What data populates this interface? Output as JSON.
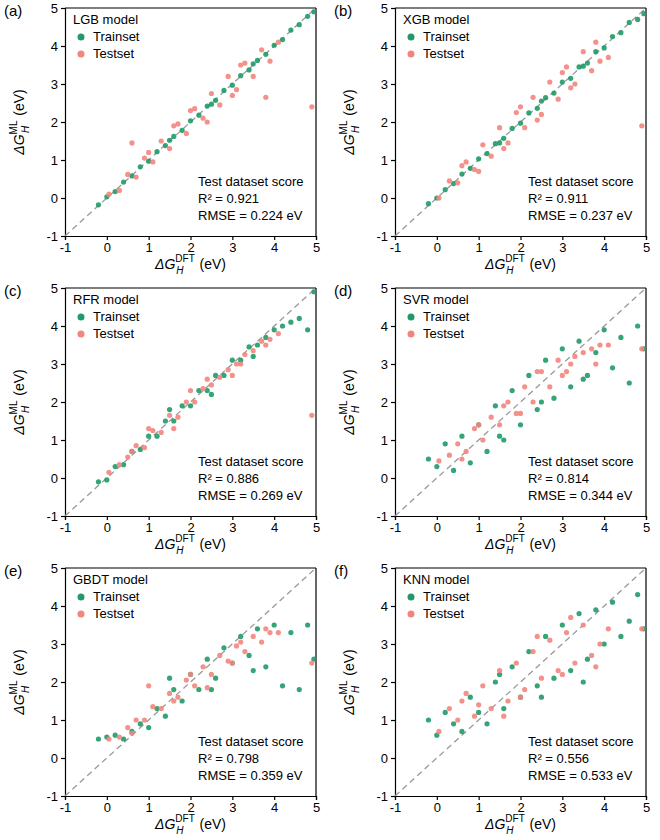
{
  "chart_data": [
    {
      "type": "scatter",
      "label": "(a)",
      "title": "LGB model",
      "xlabel": {
        "text": "ΔG",
        "sub": "H",
        "sup": "DFT",
        "unit": "(eV)"
      },
      "ylabel": {
        "text": "ΔG",
        "sub": "H",
        "sup": "ML",
        "unit": "(eV)"
      },
      "xlim": [
        -1,
        5
      ],
      "ylim": [
        -1,
        5
      ],
      "xticks": [
        -1,
        0,
        1,
        2,
        3,
        4,
        5
      ],
      "yticks": [
        -1,
        0,
        1,
        2,
        3,
        4,
        5
      ],
      "legend": "upper left",
      "annotations": [
        "Test dataset score",
        "R² = 0.921",
        "RMSE = 0.224 eV"
      ],
      "series": [
        {
          "name": "Trainset",
          "color": "#1f9a68",
          "marker": "circle",
          "x": [
            -0.2,
            0.0,
            0.2,
            0.4,
            0.6,
            0.8,
            1.0,
            1.2,
            1.4,
            1.6,
            1.8,
            2.0,
            2.2,
            2.4,
            2.6,
            2.8,
            3.0,
            3.2,
            3.4,
            3.6,
            3.8,
            4.0,
            4.2,
            4.4,
            4.6,
            4.8,
            4.95,
            1.5,
            2.5,
            3.5
          ],
          "values": [
            -0.18,
            0.03,
            0.17,
            0.42,
            0.58,
            0.82,
            0.97,
            1.22,
            1.38,
            1.62,
            1.78,
            2.03,
            2.18,
            2.42,
            2.57,
            2.83,
            2.97,
            3.22,
            3.37,
            3.62,
            3.78,
            4.02,
            4.17,
            4.42,
            4.56,
            4.78,
            4.9,
            1.52,
            2.47,
            3.53
          ]
        },
        {
          "name": "Testset",
          "color": "#f2857d",
          "marker": "circle",
          "x": [
            0.05,
            0.3,
            0.5,
            0.7,
            0.9,
            1.1,
            1.3,
            1.5,
            1.7,
            1.9,
            2.1,
            2.3,
            2.5,
            2.7,
            2.9,
            3.1,
            3.3,
            3.5,
            3.7,
            3.9,
            4.1,
            1.0,
            2.0,
            3.0,
            2.4,
            1.6,
            3.2,
            0.6,
            4.9,
            3.8
          ],
          "values": [
            0.1,
            0.2,
            0.62,
            0.55,
            1.05,
            0.95,
            1.5,
            1.3,
            1.95,
            1.7,
            2.35,
            2.1,
            2.75,
            2.45,
            3.2,
            2.85,
            3.55,
            3.2,
            3.9,
            3.6,
            4.1,
            1.2,
            2.3,
            2.7,
            2.0,
            1.9,
            3.5,
            1.45,
            2.4,
            2.65
          ]
        }
      ]
    },
    {
      "type": "scatter",
      "label": "(b)",
      "title": "XGB model",
      "xlabel": {
        "text": "ΔG",
        "sub": "H",
        "sup": "DFT",
        "unit": "(eV)"
      },
      "ylabel": {
        "text": "ΔG",
        "sub": "H",
        "sup": "ML",
        "unit": "(eV)"
      },
      "xlim": [
        -1,
        5
      ],
      "ylim": [
        -1,
        5
      ],
      "xticks": [
        -1,
        0,
        1,
        2,
        3,
        4,
        5
      ],
      "yticks": [
        -1,
        0,
        1,
        2,
        3,
        4,
        5
      ],
      "legend": "upper left",
      "annotations": [
        "Test dataset score",
        "R² = 0.911",
        "RMSE = 0.237 eV"
      ],
      "series": [
        {
          "name": "Trainset",
          "color": "#1f9a68",
          "marker": "circle",
          "x": [
            -0.2,
            0.0,
            0.2,
            0.4,
            0.6,
            0.8,
            1.0,
            1.2,
            1.4,
            1.6,
            1.8,
            2.0,
            2.2,
            2.4,
            2.6,
            2.8,
            3.0,
            3.2,
            3.4,
            3.6,
            3.8,
            4.0,
            4.2,
            4.4,
            4.6,
            4.8,
            4.95,
            1.5,
            2.5,
            3.5
          ],
          "values": [
            -0.15,
            0.0,
            0.22,
            0.38,
            0.63,
            0.78,
            1.03,
            1.17,
            1.43,
            1.57,
            1.83,
            1.97,
            2.24,
            2.36,
            2.64,
            2.76,
            3.05,
            3.15,
            3.45,
            3.55,
            3.85,
            3.95,
            4.25,
            4.35,
            4.62,
            4.7,
            4.85,
            1.45,
            2.55,
            3.47
          ]
        },
        {
          "name": "Testset",
          "color": "#f2857d",
          "marker": "circle",
          "x": [
            0.05,
            0.3,
            0.5,
            0.7,
            0.9,
            1.1,
            1.3,
            1.5,
            1.7,
            1.9,
            2.1,
            2.3,
            2.5,
            2.7,
            2.9,
            3.1,
            3.3,
            3.5,
            3.7,
            3.9,
            4.1,
            1.0,
            2.0,
            3.0,
            2.4,
            1.6,
            3.2,
            0.6,
            4.9,
            3.8
          ],
          "values": [
            0.0,
            0.45,
            0.4,
            0.95,
            0.75,
            1.4,
            1.1,
            1.85,
            1.45,
            2.25,
            1.85,
            2.65,
            2.2,
            3.05,
            2.6,
            3.45,
            3.0,
            3.85,
            3.35,
            3.6,
            3.7,
            0.7,
            2.4,
            3.3,
            2.05,
            1.3,
            2.9,
            0.85,
            1.9,
            4.1
          ]
        }
      ]
    },
    {
      "type": "scatter",
      "label": "(c)",
      "title": "RFR model",
      "xlabel": {
        "text": "ΔG",
        "sub": "H",
        "sup": "DFT",
        "unit": "(eV)"
      },
      "ylabel": {
        "text": "ΔG",
        "sub": "H",
        "sup": "ML",
        "unit": "(eV)"
      },
      "xlim": [
        -1,
        5
      ],
      "ylim": [
        -1,
        5
      ],
      "xticks": [
        -1,
        0,
        1,
        2,
        3,
        4,
        5
      ],
      "yticks": [
        -1,
        0,
        1,
        2,
        3,
        4,
        5
      ],
      "legend": "upper left",
      "annotations": [
        "Test dataset score",
        "R² = 0.886",
        "RMSE = 0.269 eV"
      ],
      "series": [
        {
          "name": "Trainset",
          "color": "#1f9a68",
          "marker": "circle",
          "x": [
            -0.2,
            0.0,
            0.2,
            0.4,
            0.6,
            0.8,
            1.0,
            1.2,
            1.4,
            1.6,
            1.8,
            2.0,
            2.2,
            2.4,
            2.6,
            2.8,
            3.0,
            3.2,
            3.4,
            3.6,
            3.8,
            4.0,
            4.2,
            4.4,
            4.6,
            4.8,
            4.95,
            1.5,
            2.5,
            3.5
          ],
          "values": [
            -0.1,
            -0.05,
            0.3,
            0.35,
            0.7,
            0.75,
            1.1,
            1.1,
            1.5,
            1.5,
            1.9,
            1.9,
            2.3,
            2.3,
            2.7,
            2.7,
            3.1,
            3.1,
            3.45,
            3.5,
            3.7,
            3.9,
            4.0,
            4.1,
            4.2,
            3.9,
            4.9,
            1.8,
            2.2,
            3.2
          ]
        },
        {
          "name": "Testset",
          "color": "#f2857d",
          "marker": "circle",
          "x": [
            0.05,
            0.3,
            0.5,
            0.7,
            0.9,
            1.1,
            1.3,
            1.5,
            1.7,
            1.9,
            2.1,
            2.3,
            2.5,
            2.7,
            2.9,
            3.1,
            3.3,
            3.5,
            3.7,
            3.9,
            4.1,
            1.0,
            2.0,
            3.0,
            2.4,
            1.6,
            3.2,
            0.6,
            4.9,
            3.8
          ],
          "values": [
            0.15,
            0.35,
            0.55,
            0.85,
            0.8,
            1.25,
            1.2,
            1.65,
            1.6,
            2.0,
            2.0,
            2.35,
            2.45,
            2.65,
            2.85,
            3.0,
            3.25,
            3.35,
            3.6,
            3.65,
            3.8,
            1.3,
            2.3,
            2.7,
            2.6,
            1.3,
            3.0,
            0.7,
            1.65,
            3.5
          ]
        }
      ]
    },
    {
      "type": "scatter",
      "label": "(d)",
      "title": "SVR model",
      "xlabel": {
        "text": "ΔG",
        "sub": "H",
        "sup": "DFT",
        "unit": "(eV)"
      },
      "ylabel": {
        "text": "ΔG",
        "sub": "H",
        "sup": "ML",
        "unit": "(eV)"
      },
      "xlim": [
        -1,
        5
      ],
      "ylim": [
        -1,
        5
      ],
      "xticks": [
        -1,
        0,
        1,
        2,
        3,
        4,
        5
      ],
      "yticks": [
        -1,
        0,
        1,
        2,
        3,
        4,
        5
      ],
      "legend": "upper left",
      "annotations": [
        "Test dataset score",
        "R² = 0.814",
        "RMSE = 0.344 eV"
      ],
      "series": [
        {
          "name": "Trainset",
          "color": "#1f9a68",
          "marker": "circle",
          "x": [
            -0.2,
            0.0,
            0.2,
            0.4,
            0.6,
            0.8,
            1.0,
            1.2,
            1.4,
            1.6,
            1.8,
            2.0,
            2.2,
            2.4,
            2.6,
            2.8,
            3.0,
            3.2,
            3.4,
            3.6,
            3.8,
            4.0,
            4.2,
            4.4,
            4.6,
            4.8,
            4.95,
            1.5,
            2.5,
            3.5
          ],
          "values": [
            0.5,
            0.3,
            0.9,
            0.2,
            1.1,
            0.4,
            1.4,
            0.7,
            1.9,
            1.0,
            2.3,
            1.4,
            2.7,
            1.8,
            3.1,
            2.1,
            3.4,
            2.4,
            3.6,
            2.7,
            3.3,
            3.9,
            2.9,
            3.7,
            2.5,
            4.0,
            3.4,
            1.1,
            2.0,
            2.6
          ]
        },
        {
          "name": "Testset",
          "color": "#f2857d",
          "marker": "circle",
          "x": [
            0.05,
            0.3,
            0.5,
            0.7,
            0.9,
            1.1,
            1.3,
            1.5,
            1.7,
            1.9,
            2.1,
            2.3,
            2.5,
            2.7,
            2.9,
            3.1,
            3.3,
            3.5,
            3.7,
            3.9,
            4.1,
            1.0,
            2.0,
            3.0,
            2.4,
            1.6,
            3.2,
            0.6,
            4.9,
            3.8
          ],
          "values": [
            0.45,
            0.6,
            0.9,
            0.7,
            1.3,
            1.0,
            1.6,
            1.4,
            2.0,
            1.7,
            2.4,
            2.0,
            2.8,
            2.4,
            3.1,
            2.8,
            3.2,
            3.3,
            3.4,
            3.5,
            3.5,
            1.4,
            1.7,
            2.7,
            2.8,
            1.9,
            3.0,
            0.5,
            3.4,
            3.0
          ]
        }
      ]
    },
    {
      "type": "scatter",
      "label": "(e)",
      "title": "GBDT model",
      "xlabel": {
        "text": "ΔG",
        "sub": "H",
        "sup": "DFT",
        "unit": "(eV)"
      },
      "ylabel": {
        "text": "ΔG",
        "sub": "H",
        "sup": "ML",
        "unit": "(eV)"
      },
      "xlim": [
        -1,
        5
      ],
      "ylim": [
        -1,
        5
      ],
      "xticks": [
        -1,
        0,
        1,
        2,
        3,
        4,
        5
      ],
      "yticks": [
        -1,
        0,
        1,
        2,
        3,
        4,
        5
      ],
      "legend": "upper left",
      "annotations": [
        "Test dataset score",
        "R² = 0.798",
        "RMSE = 0.359 eV"
      ],
      "series": [
        {
          "name": "Trainset",
          "color": "#1f9a68",
          "marker": "circle",
          "x": [
            -0.2,
            0.0,
            0.2,
            0.4,
            0.6,
            0.8,
            1.0,
            1.2,
            1.4,
            1.6,
            1.8,
            2.0,
            2.2,
            2.4,
            2.6,
            2.8,
            3.0,
            3.2,
            3.4,
            3.6,
            3.8,
            4.0,
            4.2,
            4.4,
            4.6,
            4.8,
            4.95,
            1.5,
            2.5,
            3.5
          ],
          "values": [
            0.5,
            0.55,
            0.6,
            0.5,
            0.7,
            0.9,
            0.8,
            1.3,
            1.1,
            1.8,
            1.5,
            2.2,
            1.8,
            2.6,
            2.1,
            2.9,
            2.5,
            3.2,
            2.7,
            3.4,
            2.4,
            3.5,
            1.9,
            3.3,
            1.8,
            3.5,
            2.6,
            2.1,
            1.8,
            2.3
          ]
        },
        {
          "name": "Testset",
          "color": "#f2857d",
          "marker": "circle",
          "x": [
            0.05,
            0.3,
            0.5,
            0.7,
            0.9,
            1.1,
            1.3,
            1.5,
            1.7,
            1.9,
            2.1,
            2.3,
            2.5,
            2.7,
            2.9,
            3.1,
            3.3,
            3.5,
            3.7,
            3.9,
            4.1,
            1.0,
            2.0,
            3.0,
            2.4,
            1.6,
            3.2,
            0.6,
            4.9,
            3.8
          ],
          "values": [
            0.5,
            0.55,
            0.8,
            1.0,
            1.0,
            1.35,
            1.3,
            1.7,
            1.6,
            2.05,
            1.9,
            2.4,
            2.2,
            2.7,
            2.55,
            2.95,
            2.8,
            3.2,
            3.05,
            3.3,
            3.3,
            1.9,
            2.2,
            2.5,
            1.85,
            1.5,
            3.05,
            0.65,
            2.5,
            3.4
          ]
        }
      ]
    },
    {
      "type": "scatter",
      "label": "(f)",
      "title": "KNN model",
      "xlabel": {
        "text": "ΔG",
        "sub": "H",
        "sup": "DFT",
        "unit": "(eV)"
      },
      "ylabel": {
        "text": "ΔG",
        "sub": "H",
        "sup": "ML",
        "unit": "(eV)"
      },
      "xlim": [
        -1,
        5
      ],
      "ylim": [
        -1,
        5
      ],
      "xticks": [
        -1,
        0,
        1,
        2,
        3,
        4,
        5
      ],
      "yticks": [
        -1,
        0,
        1,
        2,
        3,
        4,
        5
      ],
      "legend": "upper left",
      "annotations": [
        "Test dataset score",
        "R² = 0.556",
        "RMSE = 0.533 eV"
      ],
      "series": [
        {
          "name": "Trainset",
          "color": "#1f9a68",
          "marker": "circle",
          "x": [
            -0.2,
            0.0,
            0.2,
            0.4,
            0.6,
            0.8,
            1.0,
            1.2,
            1.4,
            1.6,
            1.8,
            2.0,
            2.2,
            2.4,
            2.6,
            2.8,
            3.0,
            3.2,
            3.4,
            3.6,
            3.8,
            4.0,
            4.2,
            4.4,
            4.6,
            4.8,
            4.95,
            1.5,
            2.5,
            3.5
          ],
          "values": [
            1.0,
            0.6,
            1.2,
            0.9,
            0.7,
            1.6,
            1.2,
            0.9,
            2.0,
            1.3,
            2.4,
            1.6,
            2.8,
            1.9,
            3.2,
            2.1,
            3.5,
            2.3,
            3.8,
            2.6,
            3.9,
            3.0,
            4.1,
            3.2,
            3.6,
            4.3,
            3.4,
            2.2,
            1.6,
            2.0
          ]
        },
        {
          "name": "Testset",
          "color": "#f2857d",
          "marker": "circle",
          "x": [
            0.05,
            0.3,
            0.5,
            0.7,
            0.9,
            1.1,
            1.3,
            1.5,
            1.7,
            1.9,
            2.1,
            2.3,
            2.5,
            2.7,
            2.9,
            3.1,
            3.3,
            3.5,
            3.7,
            3.9,
            4.1,
            1.0,
            2.0,
            3.0,
            2.4,
            1.6,
            3.2,
            0.6,
            4.9,
            3.8
          ],
          "values": [
            0.7,
            1.3,
            1.0,
            1.7,
            1.1,
            1.9,
            1.3,
            2.3,
            1.5,
            2.5,
            1.8,
            2.8,
            2.1,
            3.1,
            2.3,
            3.3,
            2.5,
            3.5,
            2.7,
            3.0,
            3.4,
            1.4,
            1.6,
            2.2,
            3.2,
            1.1,
            3.7,
            1.5,
            3.4,
            2.4
          ]
        }
      ]
    }
  ]
}
